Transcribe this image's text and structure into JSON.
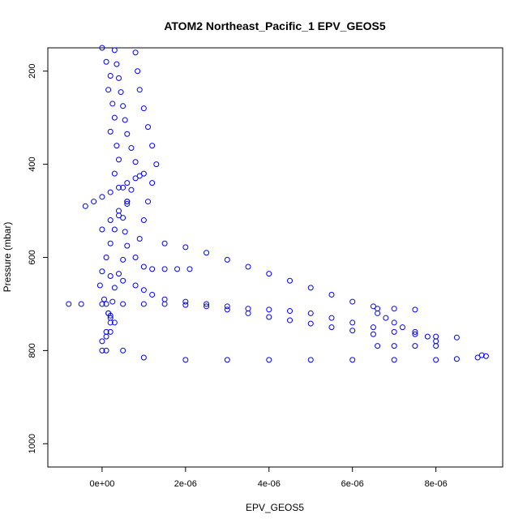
{
  "chart_data": {
    "type": "scatter",
    "title": "ATOM2 Northeast_Pacific_1 EPV_GEOS5",
    "xlabel": "EPV_GEOS5",
    "ylabel": "Pressure (mbar)",
    "xlim": [
      -1.3e-06,
      9.6e-06
    ],
    "ylim": [
      1050,
      150
    ],
    "y_reversed": true,
    "x_ticks": [
      {
        "value": 0,
        "label": "0e+00"
      },
      {
        "value": 2e-06,
        "label": "2e-06"
      },
      {
        "value": 4e-06,
        "label": "4e-06"
      },
      {
        "value": 6e-06,
        "label": "6e-06"
      },
      {
        "value": 8e-06,
        "label": "8e-06"
      }
    ],
    "y_ticks": [
      {
        "value": 200,
        "label": "200"
      },
      {
        "value": 400,
        "label": "400"
      },
      {
        "value": 600,
        "label": "600"
      },
      {
        "value": 800,
        "label": "800"
      },
      {
        "value": 1000,
        "label": "1000"
      }
    ],
    "marker": "open-circle",
    "color": "#0000ff",
    "grid": false,
    "series": [
      {
        "values_x": [
          0.0,
          1e-07,
          2e-07,
          1.5e-07,
          2.5e-07,
          3e-07,
          2e-07,
          3.5e-07,
          4e-07,
          3e-07,
          5e-07,
          6e-07,
          4e-07,
          3e-07,
          2e-07,
          1e-07,
          0.0,
          -5e-08,
          5e-08,
          1.5e-07
        ],
        "values_y": [
          150,
          180,
          210,
          240,
          270,
          300,
          330,
          360,
          390,
          420,
          450,
          480,
          510,
          540,
          570,
          600,
          630,
          660,
          690,
          720
        ]
      },
      {
        "values_x": [
          3e-07,
          3.5e-07,
          4e-07,
          4.5e-07,
          5e-07,
          5.5e-07,
          6e-07,
          7e-07,
          8e-07,
          9e-07,
          7e-07,
          6e-07,
          5e-07,
          5.5e-07,
          6e-07,
          5e-07,
          4e-07,
          3e-07,
          2.5e-07,
          2e-07
        ],
        "values_y": [
          155,
          185,
          215,
          245,
          275,
          305,
          335,
          365,
          395,
          425,
          455,
          485,
          515,
          545,
          575,
          605,
          635,
          665,
          695,
          725
        ]
      },
      {
        "values_x": [
          8e-07,
          8.5e-07,
          9e-07,
          1e-06,
          1.1e-06,
          1.2e-06,
          1.3e-06,
          1.2e-06,
          1.1e-06,
          1e-06,
          9e-07,
          8e-07,
          1e-06,
          1.2e-06,
          1.5e-06,
          1.8e-06,
          2.1e-06
        ],
        "values_y": [
          160,
          200,
          240,
          280,
          320,
          360,
          400,
          440,
          480,
          520,
          560,
          600,
          620,
          625,
          625,
          625,
          625
        ]
      },
      {
        "values_x": [
          2e-07,
          5e-07,
          8e-07,
          1e-06,
          1.2e-06,
          1.5e-06,
          2e-06,
          2.5e-06,
          3e-06,
          3.5e-06,
          4e-06,
          4.5e-06,
          5e-06,
          5.5e-06,
          6e-06,
          6.5e-06,
          7e-06,
          7.5e-06,
          8e-06,
          8.5e-06
        ],
        "values_y": [
          640,
          650,
          660,
          670,
          680,
          690,
          695,
          700,
          705,
          710,
          712,
          715,
          720,
          730,
          740,
          750,
          760,
          765,
          770,
          772
        ]
      },
      {
        "values_x": [
          1.5e-06,
          2e-06,
          2.5e-06,
          3e-06,
          3.5e-06,
          4e-06,
          4.5e-06,
          5e-06,
          5.5e-06,
          6e-06,
          6.5e-06,
          7e-06,
          7.5e-06
        ],
        "values_y": [
          570,
          578,
          590,
          605,
          620,
          635,
          650,
          665,
          680,
          695,
          705,
          710,
          712
        ]
      },
      {
        "values_x": [
          0.0,
          5e-07,
          1e-06,
          2e-06,
          3e-06,
          4e-06,
          5e-06,
          6e-06,
          7e-06,
          8e-06,
          8.5e-06,
          9e-06,
          9.2e-06,
          9.1e-06
        ],
        "values_y": [
          800,
          800,
          815,
          820,
          820,
          820,
          820,
          820,
          820,
          820,
          818,
          815,
          812,
          810
        ]
      },
      {
        "values_x": [
          -8e-07,
          -5e-07,
          0.0,
          5e-07,
          1e-06,
          1.5e-06,
          2e-06,
          2.5e-06,
          3e-06,
          3.5e-06,
          4e-06,
          4.5e-06,
          5e-06,
          5.5e-06,
          6e-06,
          6.5e-06
        ],
        "values_y": [
          700,
          700,
          700,
          700,
          700,
          700,
          702,
          705,
          712,
          720,
          728,
          735,
          742,
          750,
          757,
          765
        ]
      },
      {
        "values_x": [
          6.6e-06,
          7e-06,
          7.5e-06,
          8e-06,
          8e-06,
          7.8e-06,
          7.5e-06,
          7.2e-06,
          7e-06,
          6.8e-06,
          6.6e-06,
          6.6e-06
        ],
        "values_y": [
          790,
          790,
          790,
          790,
          780,
          770,
          760,
          750,
          740,
          730,
          720,
          710
        ]
      },
      {
        "values_x": [
          1e-07,
          1.5e-07,
          2e-07,
          1e-07,
          0.0,
          1e-07,
          2e-07,
          3e-07,
          2e-07,
          1e-07
        ],
        "values_y": [
          700,
          720,
          740,
          760,
          780,
          800,
          760,
          740,
          730,
          770
        ]
      },
      {
        "values_x": [
          -4e-07,
          -2e-07,
          0.0,
          2e-07,
          4e-07,
          6e-07,
          8e-07,
          1e-06,
          6e-07,
          4e-07,
          2e-07,
          0.0
        ],
        "values_y": [
          490,
          480,
          470,
          460,
          450,
          440,
          430,
          420,
          480,
          500,
          520,
          540
        ]
      }
    ]
  }
}
